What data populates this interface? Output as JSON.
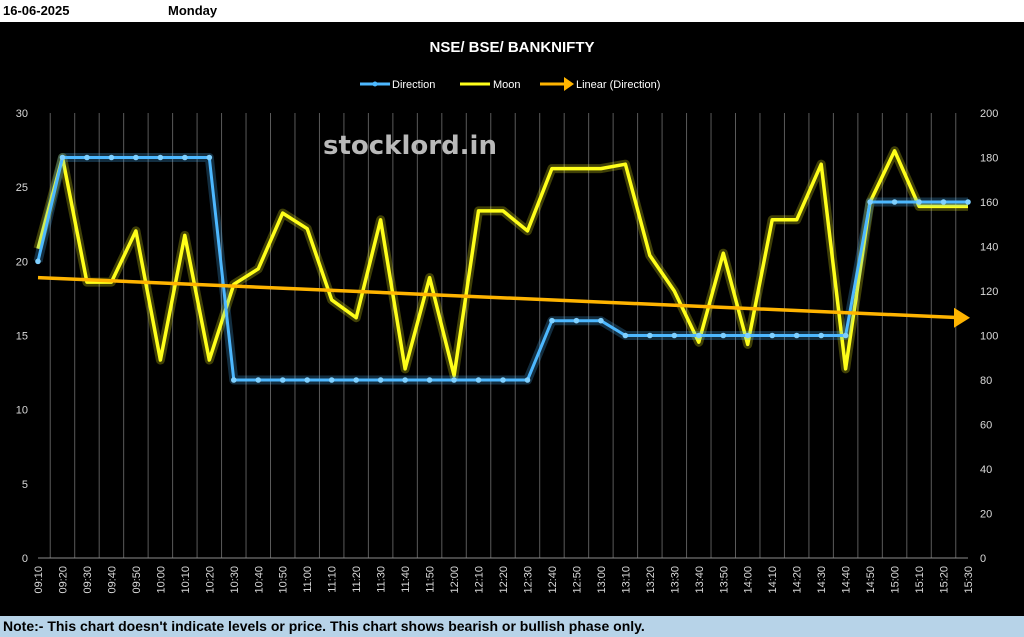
{
  "header": {
    "date": "16-06-2025",
    "day": "Monday"
  },
  "footer": {
    "note": "Note:- This chart doesn't indicate levels or price. This chart shows bearish or bullish phase only."
  },
  "watermark": "stocklord.in",
  "colors": {
    "direction": "#4db8ff",
    "moon": "#ffff1a",
    "linear": "#ffb400",
    "grid": "#5a5a5a"
  },
  "chart_data": {
    "type": "line",
    "title": "NSE/ BSE/ BANKNIFTY",
    "legend_position": "top",
    "categories": [
      "09:10",
      "09:20",
      "09:30",
      "09:40",
      "09:50",
      "10:00",
      "10:10",
      "10:20",
      "10:30",
      "10:40",
      "10:50",
      "11:00",
      "11:10",
      "11:20",
      "11:30",
      "11:40",
      "11:50",
      "12:00",
      "12:10",
      "12:20",
      "12:30",
      "12:40",
      "12:50",
      "13:00",
      "13:10",
      "13:20",
      "13:30",
      "13:40",
      "13:50",
      "14:00",
      "14:10",
      "14:20",
      "14:30",
      "14:40",
      "14:50",
      "15:00",
      "15:10",
      "15:20",
      "15:30"
    ],
    "y_left": {
      "min": 0,
      "max": 30,
      "ticks": [
        "0",
        "5",
        "10",
        "15",
        "20",
        "25",
        "30"
      ]
    },
    "y_right": {
      "min": 0,
      "max": 200,
      "ticks": [
        "0",
        "20",
        "40",
        "60",
        "80",
        "100",
        "120",
        "140",
        "160",
        "180",
        "200"
      ]
    },
    "grid": true,
    "series": [
      {
        "name": "Direction",
        "axis": "left",
        "values": [
          20,
          27,
          27,
          27,
          27,
          27,
          27,
          27,
          12,
          12,
          12,
          12,
          12,
          12,
          12,
          12,
          12,
          12,
          12,
          12,
          12,
          16,
          16,
          16,
          15,
          15,
          15,
          15,
          15,
          15,
          15,
          15,
          15,
          15,
          24,
          24,
          24,
          24,
          24
        ]
      },
      {
        "name": "Moon",
        "axis": "right",
        "values": [
          139,
          180,
          124,
          124,
          147,
          89,
          145,
          89,
          123,
          130,
          155,
          148,
          116,
          108,
          152,
          85,
          126,
          82,
          156,
          156,
          147,
          175,
          175,
          175,
          177,
          136,
          120,
          97,
          137,
          96,
          152,
          152,
          177,
          85,
          160,
          183,
          158,
          158,
          158
        ]
      },
      {
        "name": "Linear (Direction)",
        "axis": "left",
        "trend": true,
        "start": 18.9,
        "end": 16.2
      }
    ]
  }
}
